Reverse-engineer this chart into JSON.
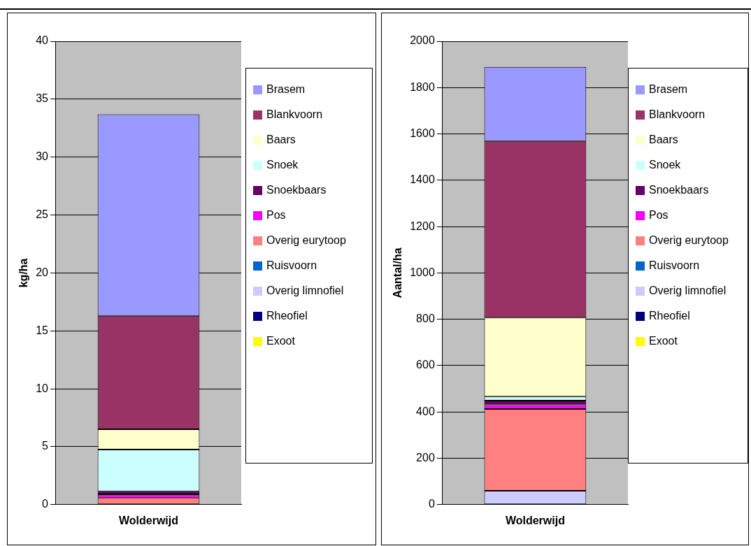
{
  "chart_data": [
    {
      "type": "bar",
      "stacked": true,
      "categories": [
        "Wolderwijd"
      ],
      "ylabel": "kg/ha",
      "ylim": [
        0,
        40
      ],
      "yticks": [
        0,
        5,
        10,
        15,
        20,
        25,
        30,
        35,
        40
      ],
      "grid": "y",
      "legend": "right",
      "series": [
        {
          "name": "Exoot",
          "color": "#ffff00",
          "values": [
            0
          ]
        },
        {
          "name": "Rheofiel",
          "color": "#000080",
          "values": [
            0
          ]
        },
        {
          "name": "Overig limnofiel",
          "color": "#ccccff",
          "values": [
            0
          ]
        },
        {
          "name": "Ruisvoorn",
          "color": "#0066cc",
          "values": [
            0
          ]
        },
        {
          "name": "Overig eurytoop",
          "color": "#ff8080",
          "values": [
            0.6
          ]
        },
        {
          "name": "Pos",
          "color": "#ff00ff",
          "values": [
            0.3
          ]
        },
        {
          "name": "Snoekbaars",
          "color": "#660066",
          "values": [
            0.25
          ]
        },
        {
          "name": "Snoek",
          "color": "#ccffff",
          "values": [
            3.6
          ]
        },
        {
          "name": "Baars",
          "color": "#ffffcc",
          "values": [
            1.75
          ]
        },
        {
          "name": "Blankvoorn",
          "color": "#993366",
          "values": [
            9.8
          ]
        },
        {
          "name": "Brasem",
          "color": "#9999ff",
          "values": [
            17.4
          ]
        }
      ]
    },
    {
      "type": "bar",
      "stacked": true,
      "categories": [
        "Wolderwijd"
      ],
      "ylabel": "Aantal/ha",
      "ylim": [
        0,
        2000
      ],
      "yticks": [
        0,
        200,
        400,
        600,
        800,
        1000,
        1200,
        1400,
        1600,
        1800,
        2000
      ],
      "grid": "y",
      "legend": "right",
      "series": [
        {
          "name": "Exoot",
          "color": "#ffff00",
          "values": [
            0
          ]
        },
        {
          "name": "Rheofiel",
          "color": "#000080",
          "values": [
            0
          ]
        },
        {
          "name": "Overig limnofiel",
          "color": "#ccccff",
          "values": [
            60
          ]
        },
        {
          "name": "Ruisvoorn",
          "color": "#0066cc",
          "values": [
            0
          ]
        },
        {
          "name": "Overig eurytoop",
          "color": "#ff8080",
          "values": [
            353
          ]
        },
        {
          "name": "Pos",
          "color": "#ff00ff",
          "values": [
            20
          ]
        },
        {
          "name": "Snoekbaars",
          "color": "#660066",
          "values": [
            16
          ]
        },
        {
          "name": "Snoek",
          "color": "#ccffff",
          "values": [
            17
          ]
        },
        {
          "name": "Baars",
          "color": "#ffffcc",
          "values": [
            341
          ]
        },
        {
          "name": "Blankvoorn",
          "color": "#993366",
          "values": [
            762
          ]
        },
        {
          "name": "Brasem",
          "color": "#9999ff",
          "values": [
            320
          ]
        }
      ]
    }
  ]
}
